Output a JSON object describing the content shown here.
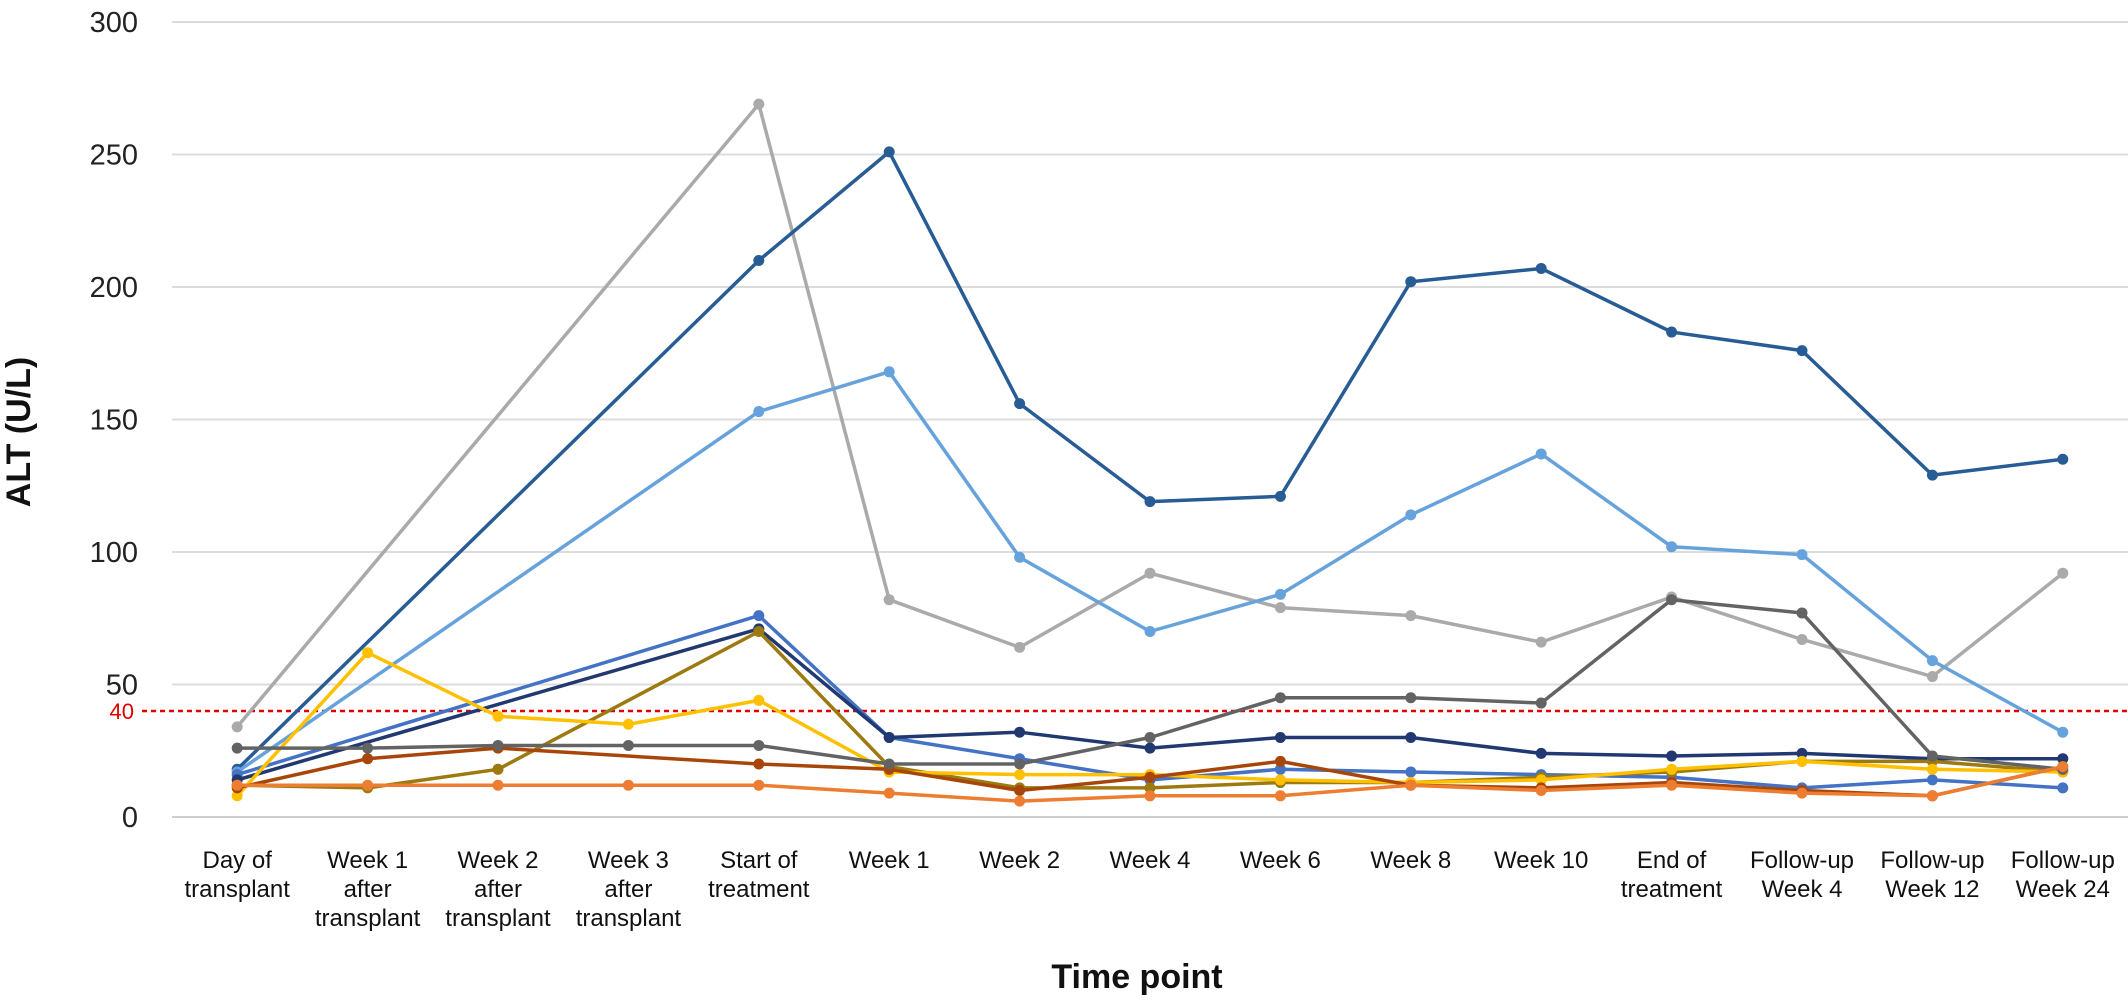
{
  "chart_data": {
    "type": "line",
    "title": "",
    "xlabel": "Time point",
    "ylabel": "ALT (U/L)",
    "ylim": [
      0,
      300
    ],
    "yticks": [
      0,
      50,
      100,
      150,
      200,
      250,
      300
    ],
    "grid": "horizontal",
    "legend": "none",
    "threshold": {
      "value": 40,
      "label": "40",
      "color": "#e00000"
    },
    "categories": [
      [
        "Day of",
        "transplant"
      ],
      [
        "Week 1",
        "after",
        "transplant"
      ],
      [
        "Week 2",
        "after",
        "transplant"
      ],
      [
        "Week 3",
        "after",
        "transplant"
      ],
      [
        "Start of",
        "treatment"
      ],
      [
        "Week 1"
      ],
      [
        "Week 2"
      ],
      [
        "Week 4"
      ],
      [
        "Week 6"
      ],
      [
        "Week 8"
      ],
      [
        "Week 10"
      ],
      [
        "End of",
        "treatment"
      ],
      [
        "Follow-up",
        "Week 4"
      ],
      [
        "Follow-up",
        "Week 12"
      ],
      [
        "Follow-up",
        "Week 24"
      ]
    ],
    "series": [
      {
        "color": "#aaaaaa",
        "values": [
          34,
          null,
          null,
          null,
          269,
          82,
          64,
          92,
          79,
          76,
          66,
          83,
          67,
          53,
          92
        ]
      },
      {
        "color": "#275c95",
        "values": [
          18,
          null,
          null,
          null,
          210,
          251,
          156,
          119,
          121,
          202,
          207,
          183,
          176,
          129,
          135
        ]
      },
      {
        "color": "#66a2dc",
        "values": [
          17,
          null,
          null,
          null,
          153,
          168,
          98,
          70,
          84,
          114,
          137,
          102,
          99,
          59,
          32
        ]
      },
      {
        "color": "#4472c4",
        "values": [
          16,
          null,
          null,
          null,
          76,
          30,
          22,
          14,
          18,
          17,
          16,
          15,
          11,
          14,
          11
        ]
      },
      {
        "color": "#213870",
        "values": [
          14,
          null,
          null,
          null,
          71,
          30,
          32,
          26,
          30,
          30,
          24,
          23,
          24,
          22,
          22
        ]
      },
      {
        "color": "#9c7a10",
        "values": [
          12,
          11,
          18,
          null,
          70,
          19,
          11,
          11,
          13,
          13,
          15,
          17,
          21,
          21,
          17
        ]
      },
      {
        "color": "#ffc000",
        "values": [
          8,
          62,
          38,
          35,
          44,
          17,
          16,
          16,
          14,
          13,
          14,
          18,
          21,
          18,
          17
        ]
      },
      {
        "color": "#a8460a",
        "values": [
          11,
          22,
          26,
          null,
          20,
          18,
          10,
          15,
          21,
          12,
          11,
          13,
          10,
          8,
          19
        ]
      },
      {
        "color": "#636363",
        "values": [
          26,
          26,
          27,
          27,
          27,
          20,
          20,
          30,
          45,
          45,
          43,
          82,
          77,
          23,
          18
        ]
      },
      {
        "color": "#ed7d31",
        "values": [
          12,
          12,
          12,
          12,
          12,
          9,
          6,
          8,
          8,
          12,
          10,
          12,
          9,
          8,
          19
        ]
      }
    ]
  }
}
